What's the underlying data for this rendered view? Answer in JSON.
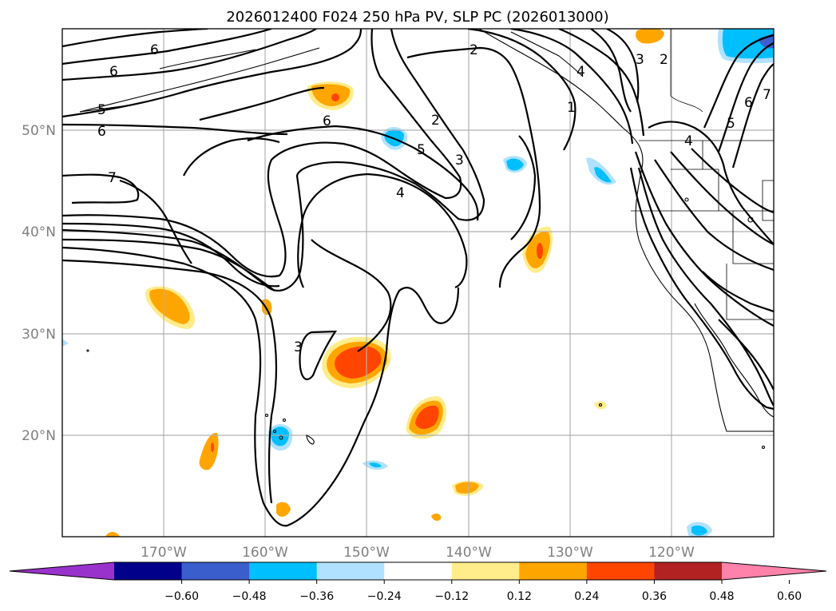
{
  "title": "2026012400 F024 250 hPa PV, SLP PC (2026013000)",
  "lat_labels": [
    "50°N",
    "40°N",
    "30°N",
    "20°N"
  ],
  "lon_labels": [
    "170°W",
    "160°W",
    "150°W",
    "140°W",
    "130°W",
    "120°W"
  ],
  "colorbar": {
    "ticks": [
      "−0.60",
      "−0.48",
      "−0.36",
      "−0.24",
      "−0.12",
      "0.12",
      "0.24",
      "0.36",
      "0.48",
      "0.60"
    ],
    "colors": [
      "#9932cc",
      "#00008b",
      "#3a5fcd",
      "#00bfff",
      "#b0e2ff",
      "#ffffff",
      "#ffec8b",
      "#ffa500",
      "#ff4500",
      "#b22222",
      "#ff82ab"
    ]
  },
  "contour_labels": [
    {
      "name": "contour-label-6-a",
      "text": "6"
    },
    {
      "name": "contour-label-6-b",
      "text": "6"
    },
    {
      "name": "contour-label-5-a",
      "text": "5"
    },
    {
      "name": "contour-label-6-c",
      "text": "6"
    },
    {
      "name": "contour-label-7-a",
      "text": "7"
    },
    {
      "name": "contour-label-6-d",
      "text": "6"
    },
    {
      "name": "contour-label-2-a",
      "text": "2"
    },
    {
      "name": "contour-label-5-b",
      "text": "5"
    },
    {
      "name": "contour-label-3-a",
      "text": "3"
    },
    {
      "name": "contour-label-4-a",
      "text": "4"
    },
    {
      "name": "contour-label-2-b",
      "text": "2"
    },
    {
      "name": "contour-label-4-b",
      "text": "4"
    },
    {
      "name": "contour-label-1-a",
      "text": "1"
    },
    {
      "name": "contour-label-3-b",
      "text": "3"
    },
    {
      "name": "contour-label-2-c",
      "text": "2"
    },
    {
      "name": "contour-label-4-c",
      "text": "4"
    },
    {
      "name": "contour-label-5-c",
      "text": "5"
    },
    {
      "name": "contour-label-6-e",
      "text": "6"
    },
    {
      "name": "contour-label-7-b",
      "text": "7"
    },
    {
      "name": "contour-label-3-c",
      "text": "3"
    }
  ]
}
